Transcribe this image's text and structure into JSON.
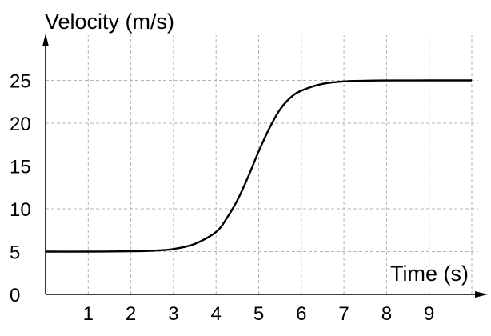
{
  "chart_data": {
    "type": "line",
    "title": "",
    "xlabel": "Time (s)",
    "ylabel": "Velocity (m/s)",
    "xlim": [
      0,
      10
    ],
    "ylim": [
      0,
      29
    ],
    "xticks": [
      1,
      2,
      3,
      4,
      5,
      6,
      7,
      8,
      9
    ],
    "yticks": [
      0,
      5,
      10,
      15,
      20,
      25
    ],
    "grid": true,
    "series": [
      {
        "color": "#000000",
        "x": [
          0,
          1,
          2,
          2.5,
          3,
          3.5,
          4,
          4.25,
          4.5,
          4.75,
          5,
          5.25,
          5.5,
          5.75,
          6,
          6.5,
          7,
          7.5,
          8,
          9,
          10
        ],
        "y": [
          5,
          5,
          5.04,
          5.1,
          5.3,
          5.9,
          7.3,
          8.9,
          11.0,
          13.7,
          16.7,
          19.4,
          21.6,
          23.0,
          23.8,
          24.6,
          24.88,
          24.96,
          24.99,
          25,
          25
        ]
      }
    ]
  }
}
